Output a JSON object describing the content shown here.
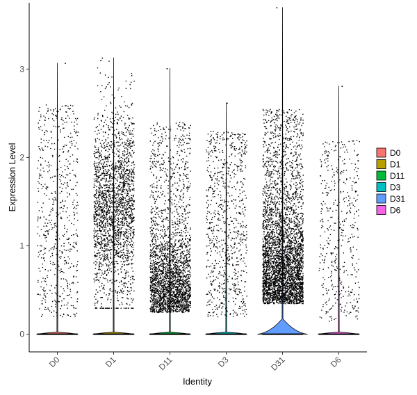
{
  "chart_data": {
    "type": "violin",
    "xlabel": "Identity",
    "ylabel": "Expression Level",
    "ylim": [
      -0.2,
      3.75
    ],
    "yticks": [
      0,
      1,
      2,
      3
    ],
    "categories": [
      "D0",
      "D1",
      "D11",
      "D3",
      "D31",
      "D6"
    ],
    "colors": [
      "#F8766D",
      "#B79F00",
      "#00BA38",
      "#00BFC4",
      "#619CFF",
      "#F564E3"
    ],
    "legend": {
      "position": "right",
      "entries": [
        "D0",
        "D1",
        "D11",
        "D3",
        "D31",
        "D6"
      ]
    },
    "grid": false,
    "series": [
      {
        "name": "D0",
        "max": 3.07,
        "approx_points": 600,
        "expressed_range": [
          0.2,
          3.07
        ]
      },
      {
        "name": "D1",
        "max": 3.13,
        "approx_points": 2200,
        "expressed_range": [
          0.3,
          3.13
        ]
      },
      {
        "name": "D11",
        "max": 3.01,
        "approx_points": 2600,
        "expressed_range": [
          0.25,
          3.01
        ]
      },
      {
        "name": "D3",
        "max": 2.62,
        "approx_points": 800,
        "expressed_range": [
          0.2,
          2.62
        ]
      },
      {
        "name": "D31",
        "max": 3.7,
        "approx_points": 3800,
        "expressed_range": [
          0.3,
          3.7
        ]
      },
      {
        "name": "D6",
        "max": 2.81,
        "approx_points": 450,
        "expressed_range": [
          0.15,
          2.81
        ]
      }
    ]
  }
}
